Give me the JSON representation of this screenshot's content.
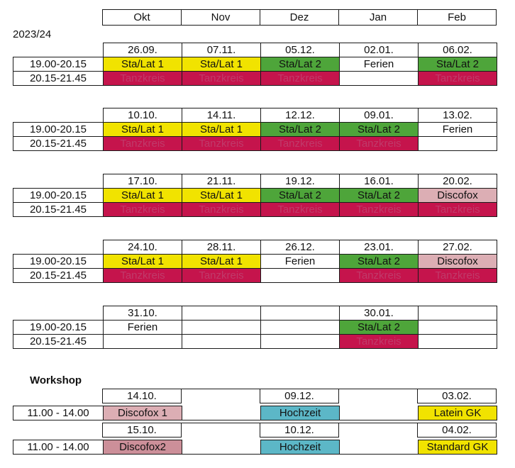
{
  "year": "2023/24",
  "months": [
    "Okt",
    "Nov",
    "Dez",
    "Jan",
    "Feb"
  ],
  "slots": [
    "19.00-20.15",
    "20.15-21.45"
  ],
  "blocks": [
    {
      "dates": [
        "26.09.",
        "07.11.",
        "05.12.",
        "02.01.",
        "06.02."
      ],
      "row1": [
        {
          "t": "Sta/Lat 1",
          "c": "yellow"
        },
        {
          "t": "Sta/Lat 1",
          "c": "yellow"
        },
        {
          "t": "Sta/Lat 2",
          "c": "green"
        },
        {
          "t": "Ferien",
          "c": "white"
        },
        {
          "t": "Sta/Lat 2",
          "c": "green"
        }
      ],
      "row2": [
        {
          "t": "Tanzkreis",
          "c": "red"
        },
        {
          "t": "Tanzkreis",
          "c": "red"
        },
        {
          "t": "Tanzkreis",
          "c": "red"
        },
        {
          "t": "",
          "c": "white"
        },
        {
          "t": "Tanzkreis",
          "c": "red"
        }
      ]
    },
    {
      "dates": [
        "10.10.",
        "14.11.",
        "12.12.",
        "09.01.",
        "13.02."
      ],
      "row1": [
        {
          "t": "Sta/Lat 1",
          "c": "yellow"
        },
        {
          "t": "Sta/Lat 1",
          "c": "yellow"
        },
        {
          "t": "Sta/Lat 2",
          "c": "green"
        },
        {
          "t": "Sta/Lat 2",
          "c": "green"
        },
        {
          "t": "Ferien",
          "c": "white"
        }
      ],
      "row2": [
        {
          "t": "Tanzkreis",
          "c": "red"
        },
        {
          "t": "Tanzkreis",
          "c": "red"
        },
        {
          "t": "Tanzkreis",
          "c": "red"
        },
        {
          "t": "Tanzkreis",
          "c": "red"
        },
        {
          "t": "",
          "c": "white"
        }
      ]
    },
    {
      "dates": [
        "17.10.",
        "21.11.",
        "19.12.",
        "16.01.",
        "20.02."
      ],
      "row1": [
        {
          "t": "Sta/Lat 1",
          "c": "yellow"
        },
        {
          "t": "Sta/Lat 1",
          "c": "yellow"
        },
        {
          "t": "Sta/Lat 2",
          "c": "green"
        },
        {
          "t": "Sta/Lat 2",
          "c": "green"
        },
        {
          "t": "Discofox",
          "c": "pink"
        }
      ],
      "row2": [
        {
          "t": "Tanzkreis",
          "c": "red"
        },
        {
          "t": "Tanzkreis",
          "c": "red"
        },
        {
          "t": "Tanzkreis",
          "c": "red"
        },
        {
          "t": "Tanzkreis",
          "c": "red"
        },
        {
          "t": "Tanzkreis",
          "c": "red"
        }
      ]
    },
    {
      "dates": [
        "24.10.",
        "28.11.",
        "26.12.",
        "23.01.",
        "27.02."
      ],
      "row1": [
        {
          "t": "Sta/Lat 1",
          "c": "yellow"
        },
        {
          "t": "Sta/Lat 1",
          "c": "yellow"
        },
        {
          "t": "Ferien",
          "c": "white"
        },
        {
          "t": "Sta/Lat 2",
          "c": "green"
        },
        {
          "t": "Discofox",
          "c": "pink"
        }
      ],
      "row2": [
        {
          "t": "Tanzkreis",
          "c": "red"
        },
        {
          "t": "Tanzkreis",
          "c": "red"
        },
        {
          "t": "",
          "c": "white"
        },
        {
          "t": "Tanzkreis",
          "c": "red"
        },
        {
          "t": "Tanzkreis",
          "c": "red"
        }
      ]
    },
    {
      "dates": [
        "31.10.",
        "",
        "",
        "30.01.",
        ""
      ],
      "row1": [
        {
          "t": "Ferien",
          "c": "white"
        },
        {
          "t": "",
          "c": "white"
        },
        {
          "t": "",
          "c": "white"
        },
        {
          "t": "Sta/Lat 2",
          "c": "green"
        },
        {
          "t": "",
          "c": "white"
        }
      ],
      "row2": [
        {
          "t": "",
          "c": "white"
        },
        {
          "t": "",
          "c": "white"
        },
        {
          "t": "",
          "c": "white"
        },
        {
          "t": "Tanzkreis",
          "c": "red"
        },
        {
          "t": "",
          "c": "white"
        }
      ]
    }
  ],
  "workshop": {
    "title": "Workshop",
    "time": "11.00 - 14.00",
    "rows": [
      {
        "dates": [
          "14.10.",
          "",
          "09.12.",
          "",
          "03.02."
        ],
        "items": [
          {
            "t": "Discofox 1",
            "c": "pink"
          },
          {
            "t": "",
            "c": "white"
          },
          {
            "t": "Hochzeit",
            "c": "teal"
          },
          {
            "t": "",
            "c": "white"
          },
          {
            "t": "Latein GK",
            "c": "yellow"
          }
        ]
      },
      {
        "dates": [
          "15.10.",
          "",
          "10.12.",
          "",
          "04.02."
        ],
        "items": [
          {
            "t": "Discofox2",
            "c": "pink2"
          },
          {
            "t": "",
            "c": "white"
          },
          {
            "t": "Hochzeit",
            "c": "teal"
          },
          {
            "t": "",
            "c": "white"
          },
          {
            "t": "Standard GK",
            "c": "yellow"
          }
        ]
      }
    ]
  }
}
